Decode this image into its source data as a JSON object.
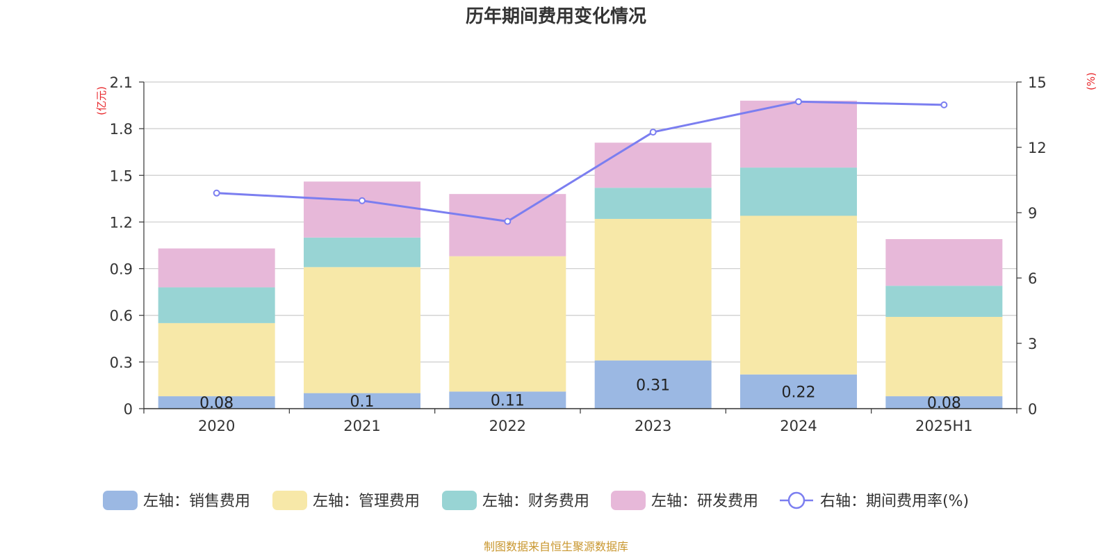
{
  "chart_data": {
    "type": "bar",
    "title": "历年期间费用变化情况",
    "categories": [
      "2020",
      "2021",
      "2022",
      "2023",
      "2024",
      "2025H1"
    ],
    "left_axis": {
      "unit": "(亿元)",
      "ylim": [
        0,
        2.1
      ],
      "ticks": [
        "0",
        "0.3",
        "0.6",
        "0.9",
        "1.2",
        "1.5",
        "1.8",
        "2.1"
      ],
      "tick_values": [
        0,
        0.3,
        0.6,
        0.9,
        1.2,
        1.5,
        1.8,
        2.1
      ]
    },
    "right_axis": {
      "unit": "(%)",
      "ylim": [
        0,
        15
      ],
      "ticks": [
        "0",
        "3",
        "6",
        "9",
        "12",
        "15"
      ],
      "tick_values": [
        0,
        3,
        6,
        9,
        12,
        15
      ]
    },
    "series": [
      {
        "name": "左轴：销售费用",
        "type": "bar",
        "stack": true,
        "color": "#9bb8e3",
        "values": [
          0.08,
          0.1,
          0.11,
          0.31,
          0.22,
          0.08
        ],
        "labels": [
          "0.08",
          "0.1",
          "0.11",
          "0.31",
          "0.22",
          "0.08"
        ]
      },
      {
        "name": "左轴：管理费用",
        "type": "bar",
        "stack": true,
        "color": "#f7e8a8",
        "values": [
          0.47,
          0.81,
          0.87,
          0.91,
          1.02,
          0.51
        ]
      },
      {
        "name": "左轴：财务费用",
        "type": "bar",
        "stack": true,
        "color": "#98d4d4",
        "values": [
          0.23,
          0.19,
          0.0,
          0.2,
          0.31,
          0.2
        ]
      },
      {
        "name": "左轴：研发费用",
        "type": "bar",
        "stack": true,
        "color": "#e7b8d9",
        "values": [
          0.25,
          0.36,
          0.4,
          0.29,
          0.43,
          0.3
        ]
      },
      {
        "name": "右轴：期间费用率(%)",
        "type": "line",
        "axis": "right",
        "color": "#7b7ef0",
        "values": [
          9.9,
          9.55,
          8.6,
          12.7,
          14.1,
          13.95
        ]
      }
    ],
    "grid": true,
    "legend_position": "bottom"
  },
  "footer": {
    "source": "制图数据来自恒生聚源数据库"
  }
}
